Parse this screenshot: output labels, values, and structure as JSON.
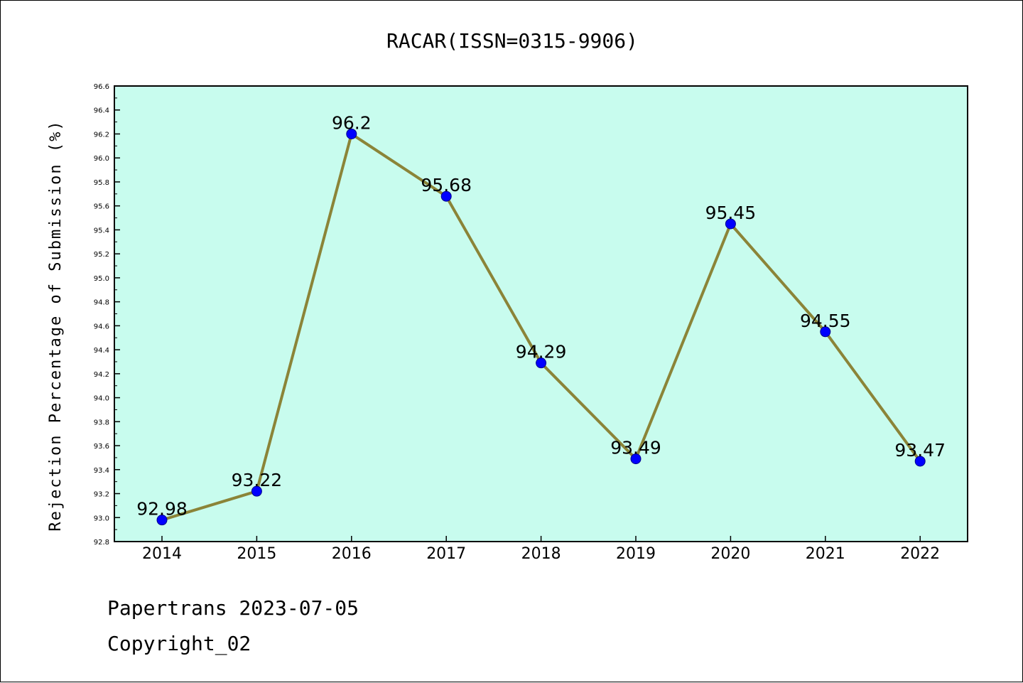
{
  "chart_data": {
    "type": "line",
    "title": "RACAR(ISSN=0315-9906)",
    "xlabel": "",
    "ylabel": "Rejection Percentage of Submission (%)",
    "categories": [
      "2014",
      "2015",
      "2016",
      "2017",
      "2018",
      "2019",
      "2020",
      "2021",
      "2022"
    ],
    "series": [
      {
        "values": [
          92.98,
          93.22,
          96.2,
          95.68,
          94.29,
          93.49,
          95.45,
          94.55,
          93.47
        ],
        "labels": [
          "92.98",
          "93.22",
          "96.2",
          "95.68",
          "94.29",
          "93.49",
          "95.45",
          "94.55",
          "93.47"
        ],
        "line_color": "#8b8438",
        "marker_color": "#0000ff"
      }
    ],
    "ylim": [
      92.8,
      96.6
    ],
    "yticks": [
      "92.8",
      "93.0",
      "93.2",
      "93.4",
      "93.6",
      "93.8",
      "94.0",
      "94.2",
      "94.4",
      "94.6",
      "94.8",
      "95.0",
      "95.2",
      "95.4",
      "95.6",
      "95.8",
      "96.0",
      "96.2",
      "96.4",
      "96.6"
    ],
    "plot_background": "#c8fcee",
    "grid": false,
    "legend": "none"
  },
  "footer": {
    "line1": "Papertrans 2023-07-05",
    "line2": "Copyright_02"
  }
}
